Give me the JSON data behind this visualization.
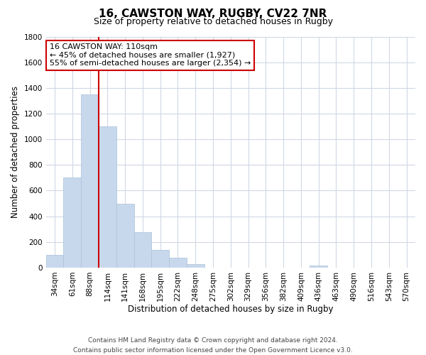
{
  "title": "16, CAWSTON WAY, RUGBY, CV22 7NR",
  "subtitle": "Size of property relative to detached houses in Rugby",
  "xlabel": "Distribution of detached houses by size in Rugby",
  "ylabel": "Number of detached properties",
  "bar_color": "#c8d8ec",
  "bar_edge_color": "#a8c0d8",
  "categories": [
    "34sqm",
    "61sqm",
    "88sqm",
    "114sqm",
    "141sqm",
    "168sqm",
    "195sqm",
    "222sqm",
    "248sqm",
    "275sqm",
    "302sqm",
    "329sqm",
    "356sqm",
    "382sqm",
    "409sqm",
    "436sqm",
    "463sqm",
    "490sqm",
    "516sqm",
    "543sqm",
    "570sqm"
  ],
  "values": [
    100,
    700,
    1350,
    1100,
    500,
    275,
    140,
    75,
    30,
    0,
    0,
    0,
    0,
    0,
    0,
    18,
    0,
    0,
    0,
    0,
    0
  ],
  "ylim": [
    0,
    1800
  ],
  "yticks": [
    0,
    200,
    400,
    600,
    800,
    1000,
    1200,
    1400,
    1600,
    1800
  ],
  "vline_color": "#cc0000",
  "vline_x_index": 2.5,
  "annotation_title": "16 CAWSTON WAY: 110sqm",
  "annotation_line2": "← 45% of detached houses are smaller (1,927)",
  "annotation_line3": "55% of semi-detached houses are larger (2,354) →",
  "annotation_box_color": "#ffffff",
  "annotation_box_edge": "#cc0000",
  "footer_line1": "Contains HM Land Registry data © Crown copyright and database right 2024.",
  "footer_line2": "Contains public sector information licensed under the Open Government Licence v3.0.",
  "background_color": "#ffffff",
  "grid_color": "#d0d8e4",
  "title_fontsize": 11,
  "subtitle_fontsize": 9,
  "axis_label_fontsize": 8.5,
  "tick_fontsize": 7.5,
  "annotation_fontsize": 8,
  "footer_fontsize": 6.5
}
